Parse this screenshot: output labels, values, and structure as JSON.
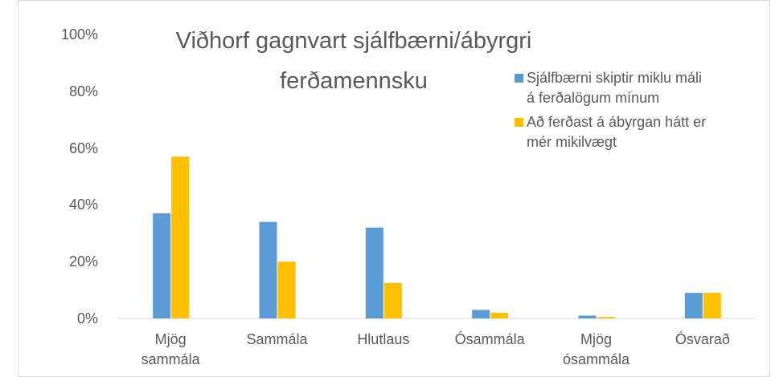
{
  "chart_data": {
    "type": "bar",
    "title": "Viðhorf gagnvart sjálfbærni/ábyrgri ferðamennsku",
    "categories": [
      "Mjög sammála",
      "Sammála",
      "Hlutlaus",
      "Ósammála",
      "Mjög ósammála",
      "Ósvarað"
    ],
    "series": [
      {
        "name": "Sjálfbærni skiptir miklu máli á ferðalögum mínum",
        "color": "#5b9bd5",
        "values": [
          37,
          34,
          32,
          3,
          1,
          9
        ]
      },
      {
        "name": "Að ferðast á ábyrgan hátt er mér mikilvægt",
        "color": "#ffc000",
        "values": [
          57,
          20,
          12.5,
          2,
          0.5,
          9
        ]
      }
    ],
    "ylim": [
      0,
      100
    ],
    "yticks": [
      {
        "value": 0,
        "label": "0%"
      },
      {
        "value": 20,
        "label": "20%"
      },
      {
        "value": 40,
        "label": "40%"
      },
      {
        "value": 60,
        "label": "60%"
      },
      {
        "value": 80,
        "label": "80%"
      },
      {
        "value": 100,
        "label": "100%"
      }
    ],
    "grid": false,
    "legend": "right"
  }
}
